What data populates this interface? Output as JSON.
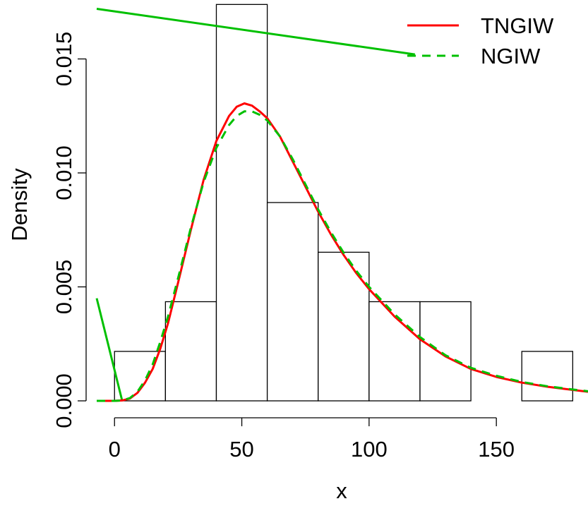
{
  "chart_data": {
    "type": "bar",
    "xlabel": "x",
    "ylabel": "Density",
    "xlim": [
      -7,
      186
    ],
    "ylim": [
      0,
      0.0174
    ],
    "x_ticks": [
      0,
      50,
      100,
      150
    ],
    "x_tick_labels": [
      "0",
      "50",
      "100",
      "150"
    ],
    "y_ticks": [
      0.0,
      0.005,
      0.01,
      0.015
    ],
    "y_tick_labels": [
      "0.000",
      "0.005",
      "0.010",
      "0.015"
    ],
    "histogram": {
      "breaks": [
        0,
        20,
        40,
        60,
        80,
        100,
        120,
        140,
        160,
        180
      ],
      "values": [
        0.00217,
        0.00435,
        0.01739,
        0.0087,
        0.00652,
        0.00435,
        0.00435,
        0.0,
        0.00217
      ]
    },
    "series": [
      {
        "name": "TNGIW",
        "style": "solid",
        "color": "#ff0000",
        "x": [
          -7,
          0,
          3,
          6,
          9,
          12,
          15,
          18,
          21,
          25,
          30,
          35,
          40,
          45,
          48,
          51,
          54,
          57,
          60,
          65,
          70,
          75,
          80,
          85,
          90,
          95,
          100,
          110,
          120,
          130,
          140,
          150,
          160,
          170,
          180,
          186
        ],
        "y": [
          0,
          0,
          2e-05,
          0.0001,
          0.00035,
          0.0008,
          0.0014,
          0.0023,
          0.0034,
          0.0052,
          0.0075,
          0.0097,
          0.0114,
          0.0125,
          0.0129,
          0.01305,
          0.01295,
          0.0127,
          0.0124,
          0.0116,
          0.0105,
          0.0094,
          0.0083,
          0.0073,
          0.0064,
          0.0056,
          0.0049,
          0.0037,
          0.0027,
          0.00195,
          0.0014,
          0.00105,
          0.0008,
          0.00062,
          0.00048,
          0.0004
        ]
      },
      {
        "name": "NGIW",
        "style": "dashed",
        "color": "#00c000",
        "x": [
          -7,
          0,
          3,
          6,
          9,
          12,
          15,
          18,
          21,
          25,
          30,
          35,
          40,
          45,
          48,
          51,
          54,
          57,
          60,
          65,
          70,
          75,
          80,
          85,
          90,
          95,
          100,
          110,
          120,
          130,
          140,
          150,
          160,
          170,
          180,
          186
        ],
        "y": [
          0,
          0,
          2e-05,
          0.00012,
          0.0004,
          0.0009,
          0.0016,
          0.0026,
          0.0037,
          0.0054,
          0.0076,
          0.0096,
          0.0111,
          0.0121,
          0.0125,
          0.0127,
          0.0127,
          0.01255,
          0.0123,
          0.0116,
          0.0106,
          0.0095,
          0.0084,
          0.0074,
          0.0065,
          0.0057,
          0.005,
          0.0038,
          0.0028,
          0.002,
          0.00145,
          0.0011,
          0.00083,
          0.00064,
          0.0005,
          0.00042
        ]
      }
    ],
    "extra_lines": [
      {
        "color": "#00c000",
        "style": "solid",
        "x": [
          -7,
          3,
          3
        ],
        "y": [
          0.0045,
          0.0,
          0.0
        ]
      },
      {
        "color": "#00c000",
        "style": "solid",
        "x": [
          -7,
          118
        ],
        "y": [
          0.0172,
          0.0152
        ]
      }
    ],
    "legend": {
      "position": "top-right",
      "entries": [
        {
          "label": "TNGIW",
          "color": "#ff0000",
          "style": "solid"
        },
        {
          "label": "NGIW",
          "color": "#00c000",
          "style": "dashed"
        }
      ]
    },
    "grid": false
  }
}
